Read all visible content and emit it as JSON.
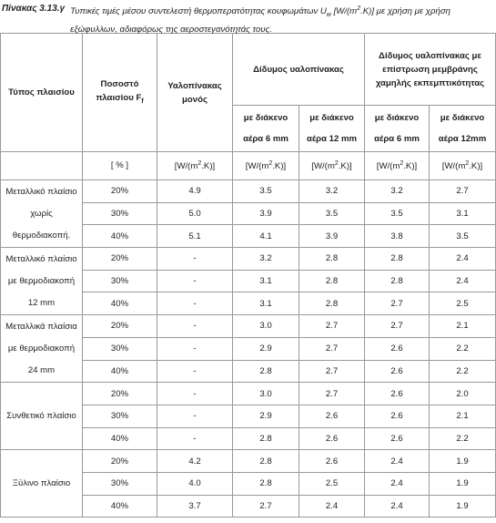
{
  "caption": {
    "label": "Πίνακας 3.13.γ",
    "text": "Τυπικές τιμές μέσου συντελεστή θερμοπερατότητας κουφωμάτων U",
    "sub": "w",
    "text2": " [W/(m",
    "sup": "2",
    "text3": ".K)] με χρήση με χρήση εξώφυλλων, αδιαφόρως της αεροστεγανότητάς τους."
  },
  "header": {
    "type": "Τύπος πλαισίου",
    "percent": {
      "text": "Ποσοστό πλαισίου F",
      "sub": "f"
    },
    "single": "Υαλοπίνακας μονός",
    "groups": [
      "Δίδυμος υαλοπίνακας",
      "Δίδυμος υαλοπίνακας με επίστρωση μεμβράνης χαμηλής εκπεμπτικότητας"
    ],
    "subs": [
      [
        "με διάκενο",
        "αέρα 6 mm"
      ],
      [
        "με διάκενο",
        "αέρα 12 mm"
      ],
      [
        "με διάκενο",
        "αέρα 6 mm"
      ],
      [
        "με διάκενο",
        "αέρα 12mm"
      ]
    ],
    "units": [
      {
        "text": "[ % ]"
      },
      {
        "text": "[W/(m",
        "sup": "2",
        "post": ".K)]"
      },
      {
        "text": "[W/(m",
        "sup": "2",
        "post": ".K)]"
      },
      {
        "text": "[W/(m",
        "sup": "2",
        "post": ".K)]"
      },
      {
        "text": "[W/(m",
        "sup": "2",
        "post": ".K)]"
      },
      {
        "text": "[W/(m",
        "sup": "2",
        "post": ".K)]"
      }
    ]
  },
  "groups": [
    {
      "label": [
        "Μεταλλικό πλαίσιο",
        "χωρίς",
        "θερμοδιακοπή."
      ],
      "rows": [
        [
          "20%",
          "4.9",
          "3.5",
          "3.2",
          "3.2",
          "2.7"
        ],
        [
          "30%",
          "5.0",
          "3.9",
          "3.5",
          "3.5",
          "3.1"
        ],
        [
          "40%",
          "5.1",
          "4.1",
          "3.9",
          "3.8",
          "3.5"
        ]
      ]
    },
    {
      "label": [
        "Μεταλλικό πλαίσιο",
        "με θερμοδιακοπή",
        "12 mm"
      ],
      "rows": [
        [
          "20%",
          "-",
          "3.2",
          "2.8",
          "2.8",
          "2.4"
        ],
        [
          "30%",
          "-",
          "3.1",
          "2.8",
          "2.8",
          "2.4"
        ],
        [
          "40%",
          "-",
          "3.1",
          "2.8",
          "2.7",
          "2.5"
        ]
      ]
    },
    {
      "label": [
        "Μεταλλικά πλαίσια",
        "με θερμοδιακοπή",
        "24 mm"
      ],
      "rows": [
        [
          "20%",
          "-",
          "3.0",
          "2.7",
          "2.7",
          "2.1"
        ],
        [
          "30%",
          "-",
          "2.9",
          "2.7",
          "2.6",
          "2.2"
        ],
        [
          "40%",
          "-",
          "2.8",
          "2.7",
          "2.6",
          "2.2"
        ]
      ]
    },
    {
      "label": [
        "Συνθετικό πλαίσιο"
      ],
      "rows": [
        [
          "20%",
          "-",
          "3.0",
          "2.7",
          "2.6",
          "2.0"
        ],
        [
          "30%",
          "-",
          "2.9",
          "2.6",
          "2.6",
          "2.1"
        ],
        [
          "40%",
          "-",
          "2.8",
          "2.6",
          "2.6",
          "2.2"
        ]
      ]
    },
    {
      "label": [
        "Ξύλινο πλαίσιο"
      ],
      "rows": [
        [
          "20%",
          "4.2",
          "2.8",
          "2.6",
          "2.4",
          "1.9"
        ],
        [
          "30%",
          "4.0",
          "2.8",
          "2.5",
          "2.4",
          "1.9"
        ],
        [
          "40%",
          "3.7",
          "2.7",
          "2.4",
          "2.4",
          "1.9"
        ]
      ]
    }
  ]
}
